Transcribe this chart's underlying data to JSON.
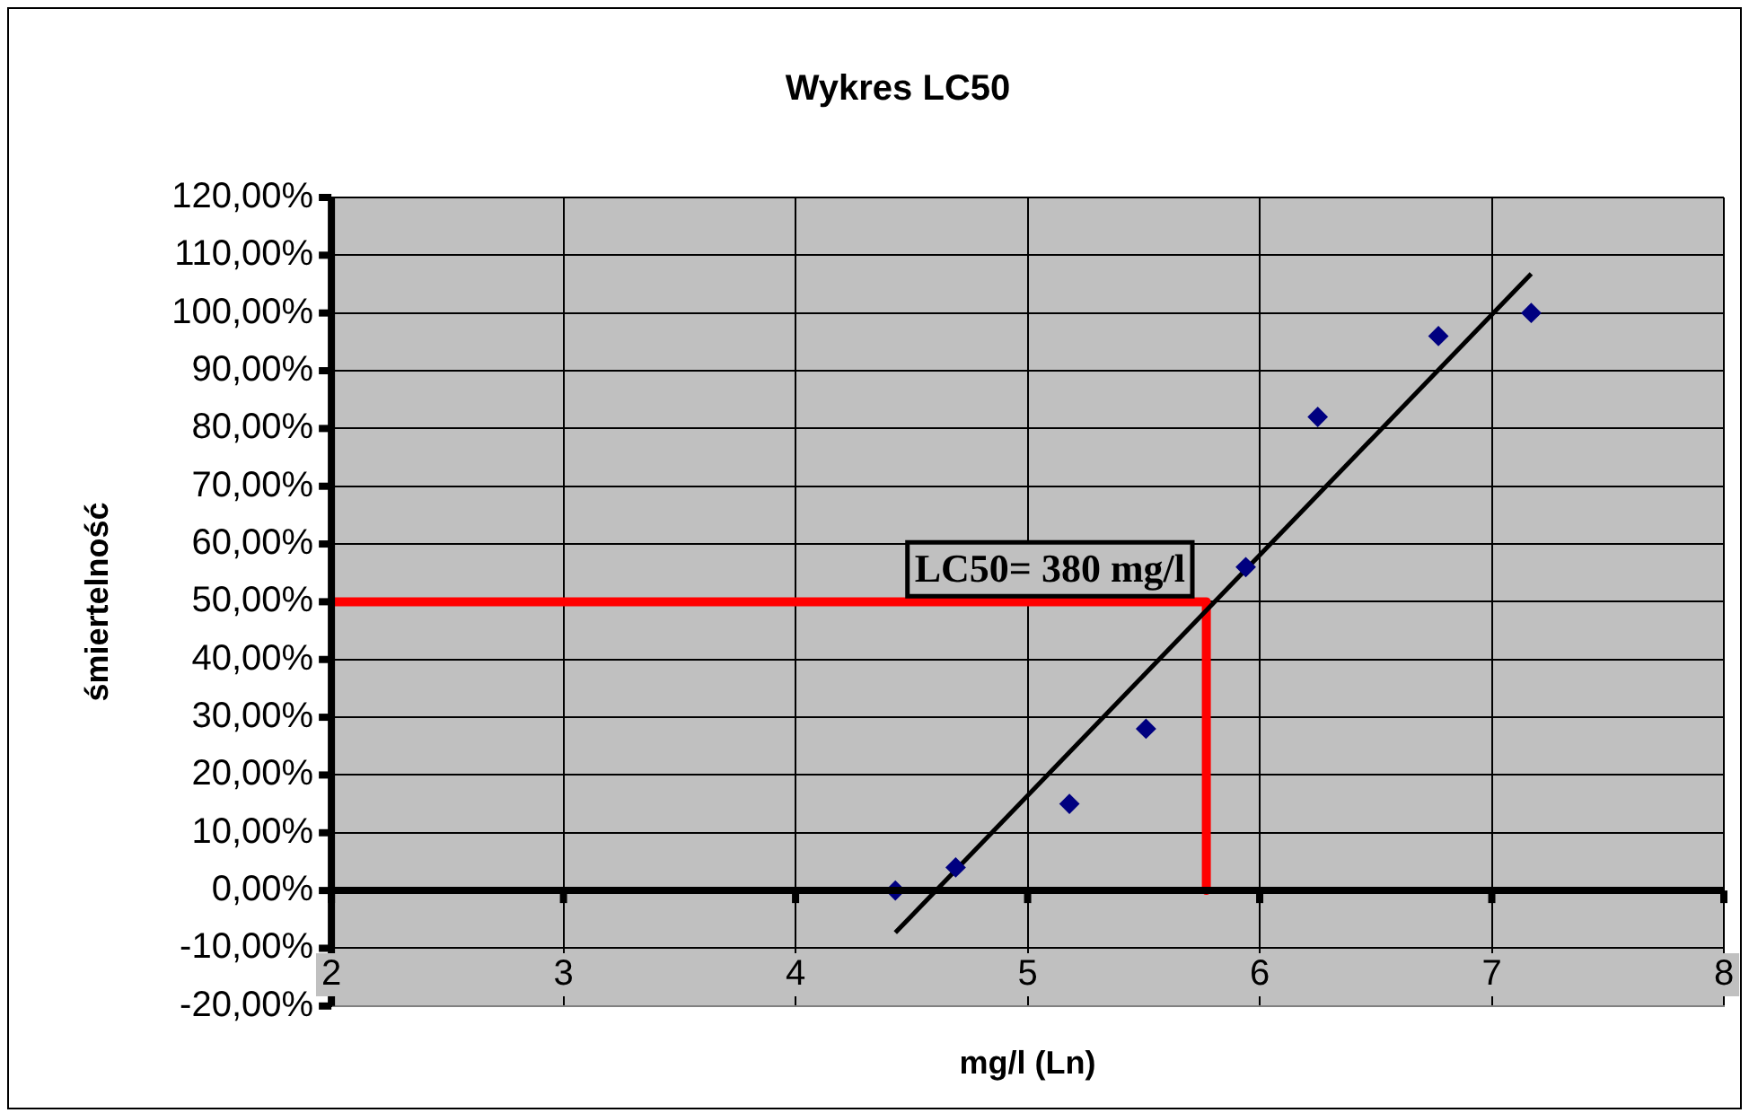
{
  "chart_data": {
    "type": "scatter",
    "title": "Wykres LC50",
    "xlabel": "mg/l (Ln)",
    "ylabel": "śmiertelność",
    "xlim": [
      2,
      8
    ],
    "xticks": [
      2,
      3,
      4,
      5,
      6,
      7,
      8
    ],
    "ylim": [
      -20,
      120
    ],
    "yticks": [
      {
        "value": -20,
        "label": "-20,00%"
      },
      {
        "value": -10,
        "label": "-10,00%"
      },
      {
        "value": 0,
        "label": "0,00%"
      },
      {
        "value": 10,
        "label": "10,00%"
      },
      {
        "value": 20,
        "label": "20,00%"
      },
      {
        "value": 30,
        "label": "30,00%"
      },
      {
        "value": 40,
        "label": "40,00%"
      },
      {
        "value": 50,
        "label": "50,00%"
      },
      {
        "value": 60,
        "label": "60,00%"
      },
      {
        "value": 70,
        "label": "70,00%"
      },
      {
        "value": 80,
        "label": "80,00%"
      },
      {
        "value": 90,
        "label": "90,00%"
      },
      {
        "value": 100,
        "label": "100,00%"
      },
      {
        "value": 110,
        "label": "110,00%"
      },
      {
        "value": 120,
        "label": "120,00%"
      }
    ],
    "grid": true,
    "legend": false,
    "series": [
      {
        "type": "scatter",
        "color": "#000080",
        "marker": "diamond",
        "x": [
          4.43,
          4.69,
          5.18,
          5.51,
          5.94,
          6.25,
          6.77,
          7.17
        ],
        "values": [
          0,
          4,
          15,
          28,
          56,
          82,
          96,
          100
        ]
      },
      {
        "type": "line",
        "color": "#000000",
        "marker": "none",
        "x": [
          4.43,
          7.17
        ],
        "values": [
          -7.3,
          106.8
        ]
      },
      {
        "type": "line",
        "color": "#ff0000",
        "marker": "none",
        "x": [
          2,
          5.77,
          5.77
        ],
        "values": [
          50,
          50,
          0
        ]
      }
    ],
    "annotations": [
      "LC50= 380 mg/l"
    ]
  }
}
